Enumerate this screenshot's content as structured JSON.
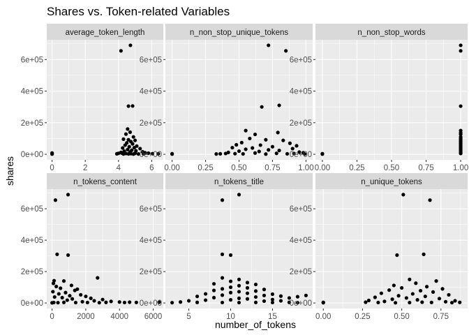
{
  "chart_data": {
    "type": "scatter",
    "title": "Shares vs. Token-related Variables",
    "xlabel": "number_of_tokens",
    "ylabel": "shares",
    "y_ticks": [
      0,
      200000,
      400000,
      600000
    ],
    "y_tick_labels": [
      "0e+00",
      "2e+05",
      "4e+05",
      "6e+05"
    ],
    "ylim": [
      -35000,
      725000
    ],
    "facet_scales": "free_x",
    "grid": true,
    "panels": [
      {
        "name": "average_token_length",
        "xlim": [
          -0.32,
          6.7
        ],
        "x_ticks": [
          0,
          2,
          4,
          6
        ],
        "x_tick_labels": [
          "0",
          "2",
          "4",
          "6"
        ],
        "x_minor": [
          1,
          3,
          5
        ],
        "points": [
          [
            0,
            4000
          ],
          [
            0,
            1200
          ],
          [
            0,
            8000
          ],
          [
            4.15,
            655000
          ],
          [
            4.72,
            690000
          ],
          [
            4.6,
            305000
          ],
          [
            4.85,
            306000
          ],
          [
            4.55,
            160000
          ],
          [
            4.7,
            140000
          ],
          [
            4.45,
            128000
          ],
          [
            4.9,
            110000
          ],
          [
            4.3,
            96000
          ],
          [
            4.6,
            92000
          ],
          [
            5.0,
            88000
          ],
          [
            4.75,
            80000
          ],
          [
            4.5,
            72000
          ],
          [
            4.85,
            66000
          ],
          [
            4.4,
            58000
          ],
          [
            5.1,
            52000
          ],
          [
            4.65,
            48000
          ],
          [
            4.95,
            42000
          ],
          [
            4.25,
            40000
          ],
          [
            5.3,
            36000
          ],
          [
            4.55,
            30000
          ],
          [
            4.8,
            26000
          ],
          [
            5.05,
            22000
          ],
          [
            4.35,
            20000
          ],
          [
            5.45,
            16000
          ],
          [
            4.7,
            14000
          ],
          [
            4.15,
            12000
          ],
          [
            5.6,
            10000
          ],
          [
            4.0,
            6000
          ],
          [
            5.8,
            7000
          ],
          [
            6.05,
            4000
          ],
          [
            6.4,
            3000
          ],
          [
            3.9,
            3000
          ],
          [
            4.3,
            2000
          ],
          [
            4.6,
            2500
          ],
          [
            4.9,
            1500
          ],
          [
            5.2,
            2000
          ],
          [
            5.5,
            3000
          ],
          [
            4.45,
            5000
          ],
          [
            4.75,
            4000
          ],
          [
            5.0,
            6000
          ],
          [
            4.2,
            8000
          ]
        ]
      },
      {
        "name": "n_non_stop_unique_tokens",
        "xlim": [
          -0.05,
          1.05
        ],
        "x_ticks": [
          0,
          0.25,
          0.5,
          0.75,
          1
        ],
        "x_tick_labels": [
          "0.00",
          "0.25",
          "0.50",
          "0.75",
          "1.00"
        ],
        "x_minor": [
          0.125,
          0.375,
          0.625,
          0.875
        ],
        "points": [
          [
            0,
            4000
          ],
          [
            0,
            1500
          ],
          [
            0.33,
            2000
          ],
          [
            0.36,
            3000
          ],
          [
            0.4,
            5000
          ],
          [
            0.72,
            690000
          ],
          [
            0.85,
            655000
          ],
          [
            0.8,
            310000
          ],
          [
            0.67,
            300000
          ],
          [
            0.55,
            150000
          ],
          [
            0.79,
            138000
          ],
          [
            0.62,
            126000
          ],
          [
            0.58,
            100000
          ],
          [
            0.7,
            92000
          ],
          [
            0.83,
            88000
          ],
          [
            0.52,
            74000
          ],
          [
            0.88,
            70000
          ],
          [
            0.48,
            60000
          ],
          [
            0.66,
            58000
          ],
          [
            0.93,
            54000
          ],
          [
            0.75,
            48000
          ],
          [
            0.45,
            42000
          ],
          [
            0.6,
            40000
          ],
          [
            0.9,
            36000
          ],
          [
            0.55,
            32000
          ],
          [
            0.72,
            28000
          ],
          [
            0.8,
            24000
          ],
          [
            0.5,
            20000
          ],
          [
            0.65,
            18000
          ],
          [
            0.95,
            14000
          ],
          [
            0.42,
            12000
          ],
          [
            0.98,
            10000
          ],
          [
            0.62,
            8000
          ],
          [
            0.78,
            6000
          ],
          [
            0.47,
            4000
          ],
          [
            0.86,
            3000
          ],
          [
            0.99,
            2000
          ],
          [
            0.53,
            2500
          ],
          [
            0.7,
            1500
          ],
          [
            0.91,
            5000
          ]
        ]
      },
      {
        "name": "n_non_stop_words",
        "xlim": [
          -0.05,
          1.05
        ],
        "x_ticks": [
          0,
          0.25,
          0.5,
          0.75,
          1
        ],
        "x_tick_labels": [
          "0.00",
          "0.25",
          "0.50",
          "0.75",
          "1.00"
        ],
        "x_minor": [
          0.125,
          0.375,
          0.625,
          0.875
        ],
        "points": [
          [
            0,
            4000
          ],
          [
            0,
            1500
          ],
          [
            1,
            690000
          ],
          [
            1,
            655000
          ],
          [
            1,
            305000
          ],
          [
            1,
            150000
          ],
          [
            1,
            136000
          ],
          [
            1,
            126000
          ],
          [
            1,
            110000
          ],
          [
            1,
            100000
          ],
          [
            1,
            92000
          ],
          [
            1,
            84000
          ],
          [
            1,
            76000
          ],
          [
            1,
            68000
          ],
          [
            1,
            60000
          ],
          [
            1,
            52000
          ],
          [
            1,
            44000
          ],
          [
            1,
            36000
          ],
          [
            1,
            28000
          ],
          [
            1,
            20000
          ],
          [
            1,
            12000
          ],
          [
            1,
            5000
          ]
        ]
      },
      {
        "name": "n_tokens_content",
        "xlim": [
          -315,
          6600
        ],
        "x_ticks": [
          0,
          2000,
          4000,
          6000
        ],
        "x_tick_labels": [
          "0",
          "2000",
          "4000",
          "6000"
        ],
        "x_minor": [
          1000,
          3000,
          5000
        ],
        "points": [
          [
            950,
            690000
          ],
          [
            200,
            655000
          ],
          [
            300,
            310000
          ],
          [
            950,
            305000
          ],
          [
            2700,
            160000
          ],
          [
            120,
            142000
          ],
          [
            700,
            140000
          ],
          [
            80,
            125000
          ],
          [
            1150,
            112000
          ],
          [
            250,
            105000
          ],
          [
            500,
            94000
          ],
          [
            1500,
            88000
          ],
          [
            1350,
            80000
          ],
          [
            50,
            72000
          ],
          [
            800,
            66000
          ],
          [
            400,
            58000
          ],
          [
            1700,
            52000
          ],
          [
            1050,
            46000
          ],
          [
            2000,
            42000
          ],
          [
            150,
            38000
          ],
          [
            600,
            34000
          ],
          [
            2300,
            30000
          ],
          [
            1200,
            26000
          ],
          [
            3000,
            22000
          ],
          [
            900,
            18000
          ],
          [
            2500,
            14000
          ],
          [
            3500,
            10000
          ],
          [
            1800,
            8000
          ],
          [
            4000,
            6000
          ],
          [
            4600,
            5000
          ],
          [
            3200,
            4000
          ],
          [
            5000,
            3500
          ],
          [
            4300,
            3000
          ],
          [
            6350,
            5000
          ],
          [
            2800,
            2000
          ],
          [
            100,
            3000
          ],
          [
            350,
            2000
          ],
          [
            700,
            4000
          ],
          [
            1400,
            2500
          ],
          [
            2100,
            3000
          ],
          [
            0,
            1000
          ]
        ]
      },
      {
        "name": "n_tokens_title",
        "xlim": [
          2.2,
          19.8
        ],
        "x_ticks": [
          5,
          10,
          15
        ],
        "x_tick_labels": [
          "5",
          "10",
          "15"
        ],
        "x_minor": [
          7.5,
          12.5,
          17.5
        ],
        "points": [
          [
            11,
            690000
          ],
          [
            9,
            655000
          ],
          [
            9,
            310000
          ],
          [
            10,
            305000
          ],
          [
            9,
            160000
          ],
          [
            11,
            150000
          ],
          [
            10,
            138000
          ],
          [
            12,
            130000
          ],
          [
            8,
            122000
          ],
          [
            13,
            118000
          ],
          [
            11,
            110000
          ],
          [
            10,
            100000
          ],
          [
            12,
            96000
          ],
          [
            9,
            90000
          ],
          [
            14,
            86000
          ],
          [
            8,
            80000
          ],
          [
            13,
            76000
          ],
          [
            11,
            72000
          ],
          [
            10,
            66000
          ],
          [
            12,
            62000
          ],
          [
            7,
            58000
          ],
          [
            15,
            56000
          ],
          [
            9,
            50000
          ],
          [
            14,
            48000
          ],
          [
            6,
            42000
          ],
          [
            16,
            44000
          ],
          [
            13,
            38000
          ],
          [
            8,
            34000
          ],
          [
            17,
            32000
          ],
          [
            11,
            30000
          ],
          [
            12,
            26000
          ],
          [
            15,
            22000
          ],
          [
            10,
            20000
          ],
          [
            7,
            18000
          ],
          [
            16,
            14000
          ],
          [
            14,
            12000
          ],
          [
            18,
            40000
          ],
          [
            19,
            48000
          ],
          [
            5,
            14000
          ],
          [
            4,
            6000
          ],
          [
            3,
            2000
          ],
          [
            17,
            4000
          ],
          [
            18,
            2000
          ],
          [
            9,
            3000
          ],
          [
            11,
            2500
          ],
          [
            13,
            3500
          ],
          [
            6,
            4000
          ],
          [
            15,
            3000
          ]
        ]
      },
      {
        "name": "n_unique_tokens",
        "xlim": [
          -0.05,
          0.92
        ],
        "x_ticks": [
          0,
          0.25,
          0.5,
          0.75
        ],
        "x_tick_labels": [
          "0.00",
          "0.25",
          "0.50",
          "0.75"
        ],
        "x_minor": [
          0.125,
          0.375,
          0.625,
          0.875
        ],
        "points": [
          [
            0,
            4000
          ],
          [
            0,
            1500
          ],
          [
            0.51,
            690000
          ],
          [
            0.68,
            655000
          ],
          [
            0.64,
            310000
          ],
          [
            0.47,
            305000
          ],
          [
            0.55,
            150000
          ],
          [
            0.72,
            140000
          ],
          [
            0.59,
            126000
          ],
          [
            0.45,
            112000
          ],
          [
            0.66,
            104000
          ],
          [
            0.5,
            96000
          ],
          [
            0.76,
            90000
          ],
          [
            0.42,
            82000
          ],
          [
            0.62,
            78000
          ],
          [
            0.7,
            70000
          ],
          [
            0.37,
            62000
          ],
          [
            0.57,
            58000
          ],
          [
            0.8,
            52000
          ],
          [
            0.48,
            46000
          ],
          [
            0.65,
            42000
          ],
          [
            0.33,
            36000
          ],
          [
            0.53,
            32000
          ],
          [
            0.74,
            28000
          ],
          [
            0.44,
            24000
          ],
          [
            0.6,
            20000
          ],
          [
            0.29,
            16000
          ],
          [
            0.84,
            14000
          ],
          [
            0.39,
            10000
          ],
          [
            0.78,
            8000
          ],
          [
            0.27,
            5000
          ],
          [
            0.87,
            4000
          ],
          [
            0.35,
            3000
          ],
          [
            0.55,
            2500
          ],
          [
            0.69,
            3500
          ],
          [
            0.82,
            2000
          ],
          [
            0.46,
            1500
          ],
          [
            0.63,
            5000
          ]
        ]
      }
    ]
  }
}
